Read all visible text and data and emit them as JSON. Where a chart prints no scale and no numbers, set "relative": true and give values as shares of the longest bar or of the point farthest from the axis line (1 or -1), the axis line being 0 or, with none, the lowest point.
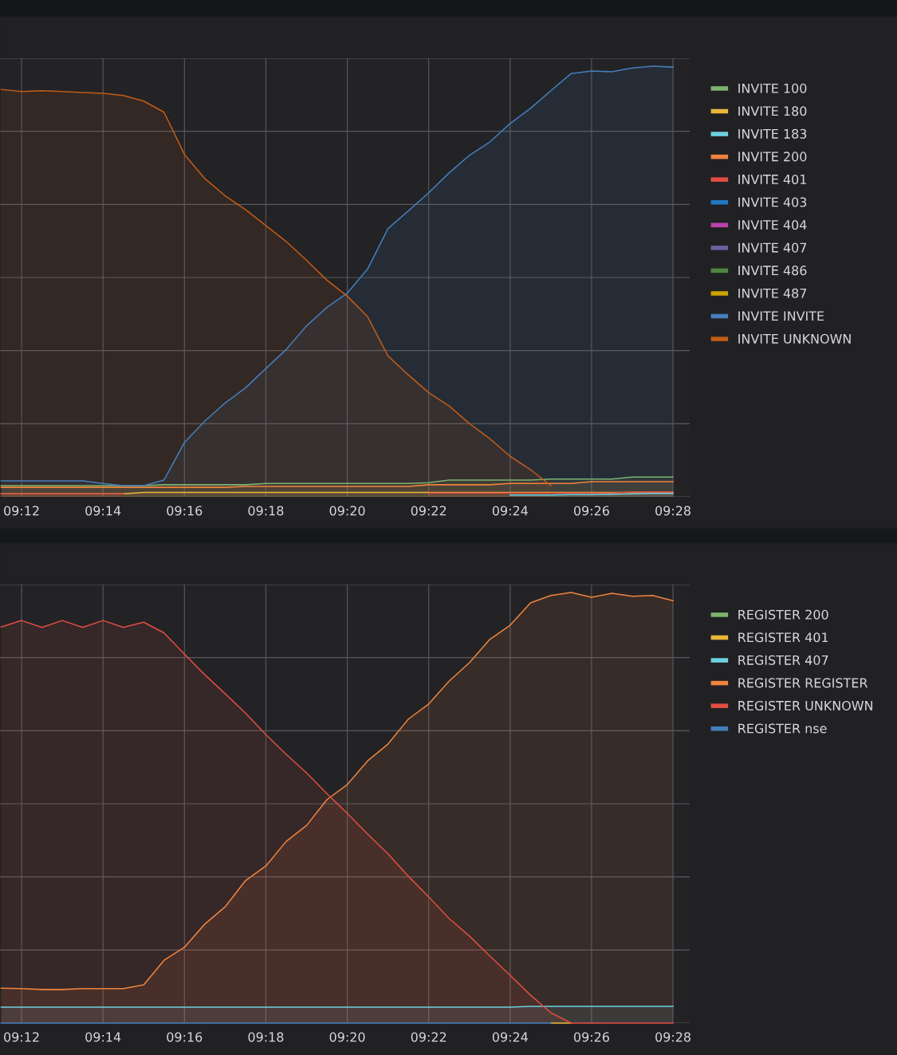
{
  "chart_data": [
    {
      "type": "area",
      "relative": true,
      "tick_labels": "x",
      "grid": true,
      "legend": "right",
      "line_style": "solid",
      "marker": "none",
      "x": [
        9.191667,
        9.2,
        9.208333,
        9.216667,
        9.225,
        9.233333,
        9.241667,
        9.25,
        9.258333,
        9.266667,
        9.275,
        9.283333,
        9.291667,
        9.3,
        9.308333,
        9.316667,
        9.325,
        9.333333,
        9.341667,
        9.35,
        9.358333,
        9.366667,
        9.375,
        9.383333,
        9.391667,
        9.4,
        9.408333,
        9.416667,
        9.425,
        9.433333,
        9.441667,
        9.45,
        9.458333,
        9.466667
      ],
      "xlim": [
        9.19117,
        9.4735
      ],
      "xticks": [
        {
          "value": 9.2,
          "label": "09:12"
        },
        {
          "value": 9.233333,
          "label": "09:14"
        },
        {
          "value": 9.266667,
          "label": "09:16"
        },
        {
          "value": 9.3,
          "label": "09:18"
        },
        {
          "value": 9.333333,
          "label": "09:20"
        },
        {
          "value": 9.366667,
          "label": "09:22"
        },
        {
          "value": 9.4,
          "label": "09:24"
        },
        {
          "value": 9.433333,
          "label": "09:26"
        },
        {
          "value": 9.466667,
          "label": "09:28"
        }
      ],
      "series": [
        {
          "name": "INVITE 100",
          "color": "#7eb26d",
          "values": [
            0.026,
            0.026,
            0.026,
            0.026,
            0.026,
            0.026,
            0.026,
            0.026,
            0.028,
            0.028,
            0.028,
            0.028,
            0.028,
            0.031,
            0.031,
            0.031,
            0.031,
            0.031,
            0.031,
            0.031,
            0.031,
            0.033,
            0.039,
            0.039,
            0.039,
            0.039,
            0.039,
            0.041,
            0.041,
            0.041,
            0.041,
            0.046,
            0.046,
            0.046
          ]
        },
        {
          "name": "INVITE 180",
          "color": "#eab839",
          "values": [
            0.007,
            0.007,
            0.007,
            0.007,
            0.007,
            0.007,
            0.007,
            0.01,
            0.01,
            0.01,
            0.01,
            0.01,
            0.01,
            0.01,
            0.01,
            0.01,
            0.01,
            0.01,
            0.01,
            0.01,
            0.01,
            0.01,
            0.01,
            0.01,
            0.01,
            0.01,
            0.01,
            0.01,
            0.01,
            0.01,
            0.01,
            0.01,
            0.01,
            0.01
          ]
        },
        {
          "name": "INVITE 183",
          "color": "#6ed0e0",
          "values": [
            null,
            null,
            null,
            null,
            null,
            null,
            null,
            null,
            null,
            null,
            null,
            null,
            null,
            null,
            null,
            null,
            null,
            null,
            null,
            null,
            null,
            null,
            null,
            null,
            null,
            0.004,
            0.004,
            0.004,
            0.005,
            0.005,
            0.006,
            0.007,
            0.008,
            0.008
          ]
        },
        {
          "name": "INVITE 200",
          "color": "#ef843c",
          "values": [
            0.022,
            0.022,
            0.022,
            0.022,
            0.022,
            0.022,
            0.022,
            0.022,
            0.022,
            0.022,
            0.022,
            0.022,
            0.024,
            0.024,
            0.024,
            0.024,
            0.024,
            0.024,
            0.024,
            0.024,
            0.024,
            0.028,
            0.028,
            0.028,
            0.028,
            0.031,
            0.031,
            0.031,
            0.031,
            0.035,
            0.035,
            0.035,
            0.035,
            0.035
          ]
        },
        {
          "name": "INVITE 401",
          "color": "#e24d42",
          "values": [
            0.007,
            0.007,
            0.007,
            0.007,
            0.007,
            0.007,
            0.007,
            null,
            null,
            null,
            null,
            null,
            null,
            null,
            null,
            null,
            null,
            null,
            null,
            null,
            null,
            0.009,
            0.009,
            0.009,
            0.009,
            0.009,
            0.009,
            0.009,
            0.009,
            0.009,
            0.009,
            0.011,
            0.011,
            0.011
          ]
        },
        {
          "name": "INVITE 403",
          "color": "#1f78c1",
          "values": [
            null,
            null,
            null,
            null,
            null,
            null,
            null,
            null,
            null,
            null,
            null,
            null,
            null,
            null,
            null,
            null,
            null,
            null,
            null,
            null,
            null,
            null,
            null,
            null,
            null,
            null,
            null,
            null,
            null,
            null,
            null,
            null,
            null,
            null
          ]
        },
        {
          "name": "INVITE 404",
          "color": "#ba43a9",
          "values": [
            null,
            null,
            null,
            null,
            null,
            null,
            null,
            null,
            null,
            null,
            null,
            null,
            null,
            null,
            null,
            null,
            null,
            null,
            null,
            null,
            null,
            null,
            null,
            null,
            null,
            null,
            null,
            null,
            null,
            null,
            null,
            null,
            null,
            null
          ]
        },
        {
          "name": "INVITE 407",
          "color": "#705da0",
          "values": [
            null,
            null,
            null,
            null,
            null,
            null,
            null,
            null,
            null,
            null,
            null,
            null,
            null,
            null,
            null,
            null,
            null,
            null,
            null,
            null,
            null,
            null,
            null,
            null,
            null,
            null,
            null,
            null,
            null,
            null,
            null,
            null,
            null,
            null
          ]
        },
        {
          "name": "INVITE 486",
          "color": "#508642",
          "values": [
            null,
            null,
            null,
            null,
            null,
            null,
            null,
            null,
            null,
            null,
            null,
            null,
            null,
            null,
            null,
            null,
            null,
            null,
            null,
            null,
            null,
            null,
            null,
            null,
            null,
            null,
            null,
            null,
            null,
            null,
            null,
            null,
            null,
            null
          ]
        },
        {
          "name": "INVITE 487",
          "color": "#cca300",
          "values": [
            null,
            null,
            null,
            null,
            null,
            null,
            null,
            null,
            null,
            null,
            null,
            null,
            null,
            null,
            null,
            null,
            null,
            null,
            null,
            null,
            null,
            null,
            null,
            null,
            null,
            null,
            null,
            null,
            null,
            null,
            null,
            null,
            null,
            null
          ]
        },
        {
          "name": "INVITE INVITE",
          "color": "#447ebc",
          "values": [
            0.037,
            0.037,
            0.037,
            0.037,
            0.037,
            0.031,
            0.026,
            0.026,
            0.039,
            0.126,
            0.176,
            0.218,
            0.253,
            0.298,
            0.342,
            0.397,
            0.44,
            0.473,
            0.529,
            0.623,
            0.664,
            0.706,
            0.752,
            0.793,
            0.824,
            0.867,
            0.902,
            0.943,
            0.983,
            0.989,
            0.987,
            0.996,
            1,
            0.998
          ]
        },
        {
          "name": "INVITE UNKNOWN",
          "color": "#c15c17",
          "values": [
            0.946,
            0.941,
            0.943,
            0.941,
            0.939,
            0.937,
            0.932,
            0.919,
            0.893,
            0.795,
            0.739,
            0.699,
            0.667,
            0.63,
            0.593,
            0.549,
            0.503,
            0.466,
            0.418,
            0.327,
            0.283,
            0.242,
            0.211,
            0.17,
            0.135,
            0.094,
            0.063,
            0.026,
            null,
            null,
            null,
            null,
            null,
            null
          ]
        }
      ]
    },
    {
      "type": "area",
      "relative": true,
      "tick_labels": "x",
      "grid": true,
      "legend": "right",
      "line_style": "solid",
      "marker": "none",
      "x": [
        9.191667,
        9.2,
        9.208333,
        9.216667,
        9.225,
        9.233333,
        9.241667,
        9.25,
        9.258333,
        9.266667,
        9.275,
        9.283333,
        9.291667,
        9.3,
        9.308333,
        9.316667,
        9.325,
        9.333333,
        9.341667,
        9.35,
        9.358333,
        9.366667,
        9.375,
        9.383333,
        9.391667,
        9.4,
        9.408333,
        9.416667,
        9.425,
        9.433333,
        9.441667,
        9.45,
        9.458333,
        9.466667
      ],
      "xlim": [
        9.19117,
        9.4735
      ],
      "xticks": [
        {
          "value": 9.2,
          "label": "09:12"
        },
        {
          "value": 9.233333,
          "label": "09:14"
        },
        {
          "value": 9.266667,
          "label": "09:16"
        },
        {
          "value": 9.3,
          "label": "09:18"
        },
        {
          "value": 9.333333,
          "label": "09:20"
        },
        {
          "value": 9.366667,
          "label": "09:22"
        },
        {
          "value": 9.4,
          "label": "09:24"
        },
        {
          "value": 9.433333,
          "label": "09:26"
        },
        {
          "value": 9.466667,
          "label": "09:28"
        }
      ],
      "series": [
        {
          "name": "REGISTER 200",
          "color": "#7eb26d",
          "values": [
            null,
            null,
            null,
            null,
            null,
            null,
            null,
            null,
            null,
            null,
            null,
            null,
            null,
            null,
            null,
            null,
            null,
            null,
            null,
            null,
            null,
            null,
            null,
            null,
            null,
            null,
            null,
            null,
            null,
            null,
            null,
            null,
            null,
            null
          ]
        },
        {
          "name": "REGISTER 401",
          "color": "#eab839",
          "type": "line",
          "values": [
            null,
            null,
            null,
            null,
            null,
            null,
            null,
            null,
            null,
            null,
            null,
            null,
            null,
            null,
            null,
            null,
            null,
            null,
            null,
            null,
            null,
            null,
            null,
            null,
            null,
            null,
            null,
            0,
            0,
            null,
            null,
            null,
            null,
            null
          ]
        },
        {
          "name": "REGISTER 407",
          "color": "#6ed0e0",
          "values": [
            0.037,
            0.037,
            0.037,
            0.037,
            0.037,
            0.037,
            0.037,
            0.037,
            0.037,
            0.037,
            0.037,
            0.037,
            0.037,
            0.037,
            0.037,
            0.037,
            0.037,
            0.037,
            0.037,
            0.037,
            0.037,
            0.037,
            0.037,
            0.037,
            0.037,
            0.037,
            0.039,
            0.039,
            0.039,
            0.039,
            0.039,
            0.039,
            0.039,
            0.039
          ]
        },
        {
          "name": "REGISTER REGISTER",
          "color": "#ef843c",
          "values": [
            0.081,
            0.08,
            0.078,
            0.078,
            0.08,
            0.08,
            0.08,
            0.089,
            0.146,
            0.176,
            0.23,
            0.27,
            0.331,
            0.365,
            0.422,
            0.459,
            0.519,
            0.554,
            0.609,
            0.648,
            0.706,
            0.741,
            0.794,
            0.837,
            0.891,
            0.924,
            0.976,
            0.993,
            1,
            0.989,
            0.998,
            0.991,
            0.993,
            0.981
          ]
        },
        {
          "name": "REGISTER UNKNOWN",
          "color": "#e24d42",
          "values": [
            0.92,
            0.935,
            0.919,
            0.935,
            0.919,
            0.935,
            0.919,
            0.931,
            0.906,
            0.857,
            0.809,
            0.765,
            0.72,
            0.67,
            0.624,
            0.581,
            0.533,
            0.487,
            0.439,
            0.393,
            0.341,
            0.293,
            0.243,
            0.202,
            0.156,
            0.111,
            0.065,
            0.024,
            0,
            0,
            0,
            0,
            0,
            0
          ]
        },
        {
          "name": "REGISTER nse",
          "color": "#447ebc",
          "type": "line",
          "values": [
            0,
            0,
            0,
            0,
            0,
            0,
            0,
            0,
            0,
            0,
            0,
            0,
            0,
            0,
            0,
            0,
            0,
            0,
            0,
            0,
            0,
            0,
            0,
            0,
            0,
            0,
            0,
            0,
            null,
            null,
            null,
            null,
            null,
            null
          ]
        }
      ]
    }
  ]
}
